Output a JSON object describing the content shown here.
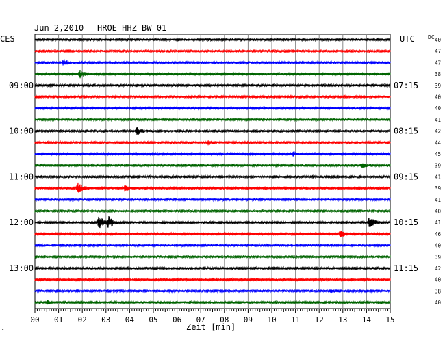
{
  "header": {
    "date": "Jun 2,2010",
    "station": "HROE HHZ BW 01",
    "left_tz": "CES",
    "right_tz": "UTC",
    "dc_label": "DC"
  },
  "footer": {
    "xlabel": "Zeit [min]",
    "corner_mark": "\""
  },
  "chart_data": {
    "type": "line",
    "title": "Jun 2,2010   HROE HHZ BW 01",
    "xlabel": "Zeit [min]",
    "xlim": [
      0,
      15
    ],
    "x_ticks": [
      "00",
      "01",
      "02",
      "03",
      "04",
      "05",
      "06",
      "07",
      "08",
      "09",
      "10",
      "11",
      "12",
      "13",
      "14",
      "15"
    ],
    "grid": true,
    "trace_colors": [
      "#000000",
      "#ff0000",
      "#0000ff",
      "#006400"
    ],
    "left_hour_labels": [
      {
        "row": 4,
        "label": "09:00"
      },
      {
        "row": 8,
        "label": "10:00"
      },
      {
        "row": 12,
        "label": "11:00"
      },
      {
        "row": 16,
        "label": "12:00"
      },
      {
        "row": 20,
        "label": "13:00"
      }
    ],
    "right_hour_labels": [
      {
        "row": 4,
        "label": "07:15"
      },
      {
        "row": 8,
        "label": "08:15"
      },
      {
        "row": 12,
        "label": "09:15"
      },
      {
        "row": 16,
        "label": "10:15"
      },
      {
        "row": 20,
        "label": "11:15"
      }
    ],
    "dc_values": [
      "40",
      "47",
      "47",
      "38",
      "39",
      "40",
      "40",
      "41",
      "42",
      "44",
      "45",
      "39",
      "41",
      "39",
      "41",
      "40",
      "41",
      "46",
      "40",
      "39",
      "42",
      "40",
      "38",
      "40"
    ],
    "events": [
      {
        "row": 3,
        "minute": 1.9,
        "amplitude": 0.6
      },
      {
        "row": 2,
        "minute": 1.2,
        "amplitude": 0.45
      },
      {
        "row": 8,
        "minute": 4.3,
        "amplitude": 0.7
      },
      {
        "row": 9,
        "minute": 7.3,
        "amplitude": 0.35
      },
      {
        "row": 10,
        "minute": 10.9,
        "amplitude": 0.35
      },
      {
        "row": 11,
        "minute": 13.8,
        "amplitude": 0.4
      },
      {
        "row": 13,
        "minute": 1.8,
        "amplitude": 1.0
      },
      {
        "row": 13,
        "minute": 3.8,
        "amplitude": 0.45
      },
      {
        "row": 16,
        "minute": 2.7,
        "amplitude": 1.0
      },
      {
        "row": 16,
        "minute": 3.1,
        "amplitude": 0.95
      },
      {
        "row": 16,
        "minute": 14.1,
        "amplitude": 1.0
      },
      {
        "row": 17,
        "minute": 12.9,
        "amplitude": 0.55
      },
      {
        "row": 23,
        "minute": 0.5,
        "amplitude": 0.35
      },
      {
        "row": 22,
        "minute": 12.5,
        "amplitude": 0.3
      }
    ]
  }
}
